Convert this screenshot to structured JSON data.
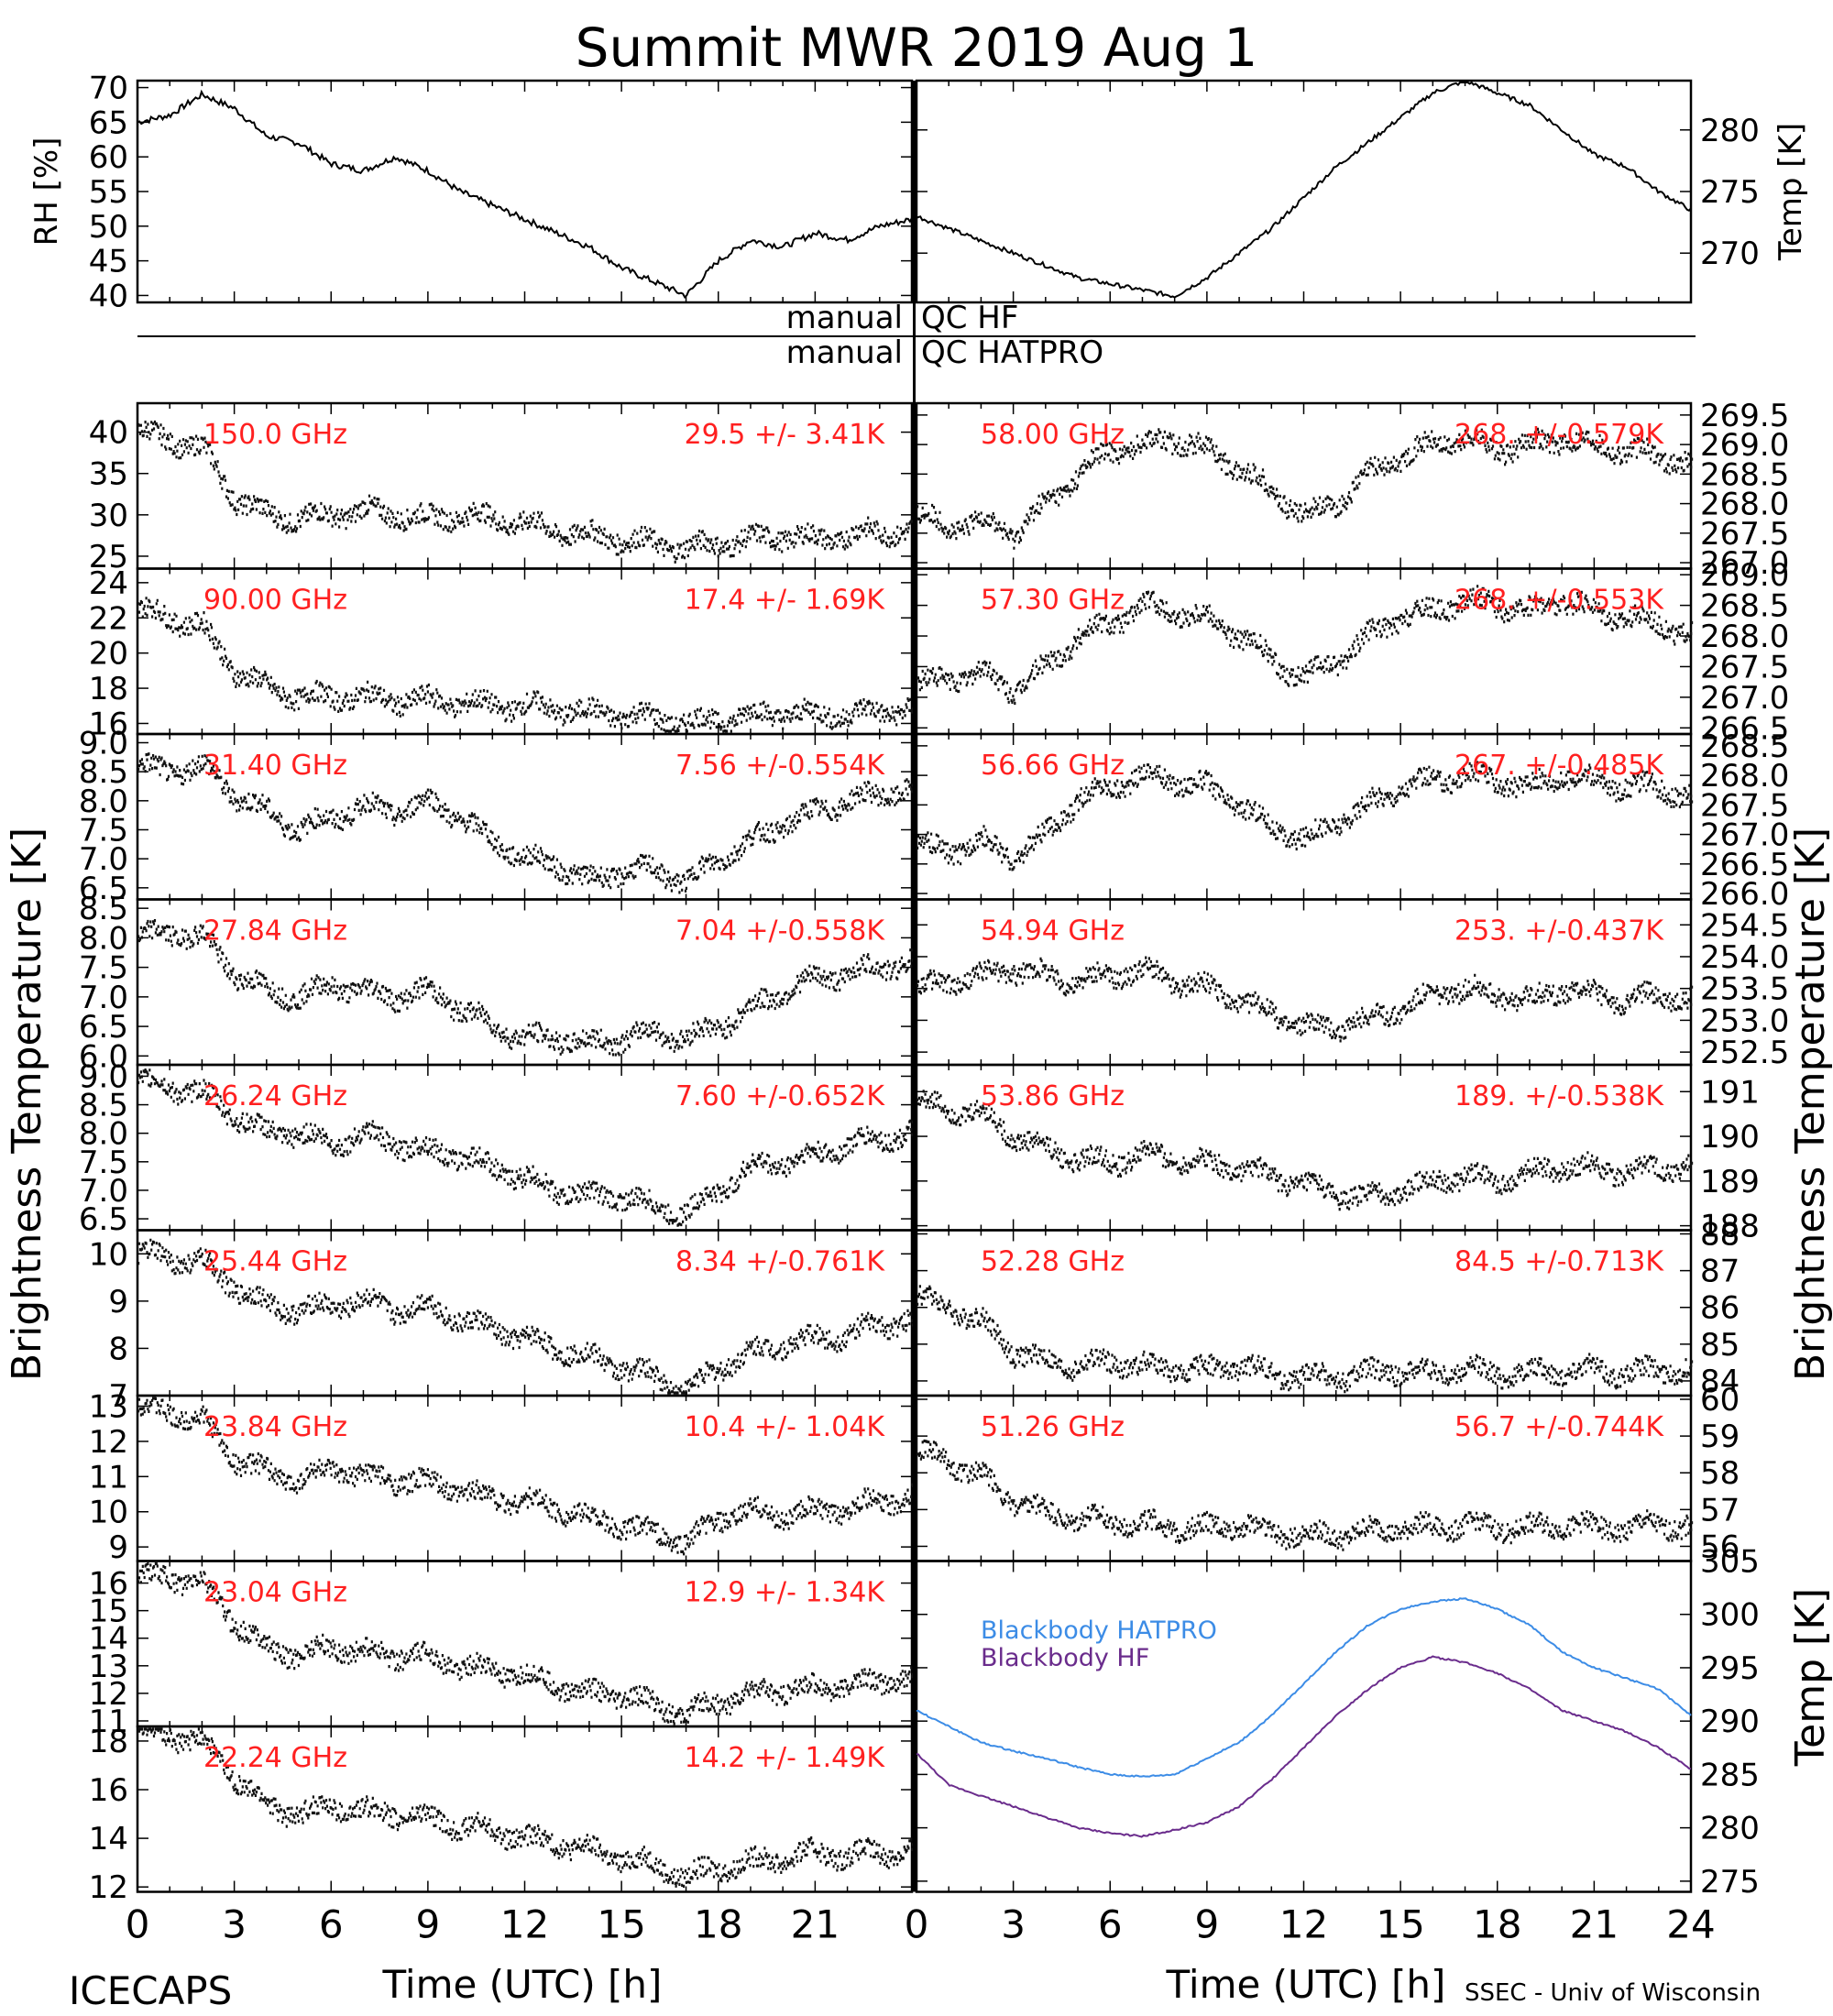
{
  "title": "Summit MWR 2019 Aug  1",
  "footer": {
    "left": "ICECAPS",
    "right": "SSEC - Univ of Wisconsin",
    "xlabel": "Time (UTC) [h]",
    "x_ticks": [
      "0",
      "3",
      "6",
      "9",
      "12",
      "15",
      "18",
      "21",
      "24"
    ]
  },
  "side_labels": {
    "left": "Brightness Temperature [K]",
    "right": "Brightness Temperature [K]",
    "bottom_right": "Temp [K]"
  },
  "qc": {
    "hf_left": "manual",
    "hf_right": "QC HF",
    "hatpro_left": "manual",
    "hatpro_right": "QC HATPRO"
  },
  "chart_data": [
    {
      "type": "line",
      "panel": "rh",
      "ylabel": "RH [%]",
      "ylim": [
        39,
        71
      ],
      "xlim": [
        0,
        24
      ],
      "y_ticks": [
        "40",
        "45",
        "50",
        "55",
        "60",
        "65",
        "70"
      ],
      "x": [
        0,
        1,
        2,
        3,
        4,
        5,
        6,
        7,
        8,
        9,
        10,
        11,
        12,
        13,
        14,
        15,
        16,
        17,
        18,
        19,
        20,
        21,
        22,
        23,
        24
      ],
      "y": [
        65,
        66,
        69,
        67,
        63,
        62,
        59,
        58,
        60,
        58,
        55,
        53,
        51,
        49,
        47,
        44,
        42,
        40,
        45,
        48,
        47,
        49,
        48,
        50,
        51
      ]
    },
    {
      "type": "line",
      "panel": "temp_air",
      "ylabel": "Temp [K]",
      "ylim": [
        266,
        284
      ],
      "xlim": [
        0,
        24
      ],
      "y_ticks": [
        "270",
        "275",
        "280"
      ],
      "x": [
        0,
        1,
        2,
        3,
        4,
        5,
        6,
        7,
        8,
        9,
        10,
        11,
        12,
        13,
        14,
        15,
        16,
        17,
        18,
        19,
        20,
        21,
        22,
        23,
        24
      ],
      "y": [
        273,
        272,
        271,
        270,
        269,
        268,
        267.5,
        267,
        266.5,
        268,
        270,
        272,
        274.5,
        277,
        279,
        281,
        283,
        284,
        283,
        282,
        280,
        278,
        277,
        275,
        273.5
      ]
    },
    {
      "type": "scatter",
      "side": "left",
      "channel": "150.0 GHz",
      "stat": "29.5 +/-  3.41K",
      "ylim": [
        23.5,
        43.5
      ],
      "y_ticks": [
        "25",
        "30",
        "35",
        "40"
      ],
      "x": [
        0,
        1,
        2,
        3,
        4,
        5,
        6,
        7,
        8,
        9,
        10,
        11,
        12,
        13,
        14,
        15,
        16,
        17,
        18,
        19,
        20,
        21,
        22,
        23,
        24
      ],
      "y": [
        40,
        39,
        38,
        32,
        30,
        29.5,
        30,
        30.5,
        30,
        29.5,
        30,
        29.5,
        29,
        28,
        27.5,
        27,
        26.5,
        26,
        26.5,
        27,
        27.5,
        27,
        27.5,
        28,
        28
      ]
    },
    {
      "type": "scatter",
      "side": "left",
      "channel": "90.00 GHz",
      "stat": "17.4 +/-  1.69K",
      "ylim": [
        15.4,
        24.8
      ],
      "y_ticks": [
        "16",
        "18",
        "20",
        "22",
        "24"
      ],
      "x": [
        0,
        1,
        2,
        3,
        4,
        5,
        6,
        7,
        8,
        9,
        10,
        11,
        12,
        13,
        14,
        15,
        16,
        17,
        18,
        19,
        20,
        21,
        22,
        23,
        24
      ],
      "y": [
        22.5,
        22,
        21.5,
        19,
        18,
        17.5,
        17.5,
        17.5,
        17.3,
        17.3,
        17.2,
        17,
        17,
        16.8,
        16.6,
        16.5,
        16.3,
        16,
        16.2,
        16.5,
        16.6,
        16.5,
        16.5,
        16.7,
        16.8
      ]
    },
    {
      "type": "scatter",
      "side": "left",
      "channel": "31.40 GHz",
      "stat": "7.56 +/-0.554K",
      "ylim": [
        6.3,
        9.15
      ],
      "y_ticks": [
        "6.5",
        "7.0",
        "7.5",
        "8.0",
        "8.5",
        "9.0"
      ],
      "x": [
        0,
        1,
        2,
        3,
        4,
        5,
        6,
        7,
        8,
        9,
        10,
        11,
        12,
        13,
        14,
        15,
        16,
        17,
        18,
        19,
        20,
        21,
        22,
        23,
        24
      ],
      "y": [
        8.6,
        8.5,
        8.6,
        8.1,
        7.8,
        7.5,
        7.7,
        7.9,
        7.8,
        8.0,
        7.7,
        7.3,
        7.0,
        6.9,
        6.6,
        6.8,
        6.8,
        6.6,
        7.0,
        7.3,
        7.6,
        7.8,
        8.0,
        8.1,
        8.2
      ]
    },
    {
      "type": "scatter",
      "side": "left",
      "channel": "27.84 GHz",
      "stat": "7.04 +/-0.558K",
      "ylim": [
        5.85,
        8.65
      ],
      "y_ticks": [
        "6.0",
        "6.5",
        "7.0",
        "7.5",
        "8.0",
        "8.5"
      ],
      "x": [
        0,
        1,
        2,
        3,
        4,
        5,
        6,
        7,
        8,
        9,
        10,
        11,
        12,
        13,
        14,
        15,
        16,
        17,
        18,
        19,
        20,
        21,
        22,
        23,
        24
      ],
      "y": [
        8.0,
        8.1,
        8.0,
        7.4,
        7.1,
        7.0,
        7.2,
        7.1,
        7.0,
        7.1,
        6.8,
        6.5,
        6.3,
        6.3,
        6.2,
        6.3,
        6.4,
        6.3,
        6.5,
        6.8,
        7.1,
        7.3,
        7.4,
        7.5,
        7.6
      ]
    },
    {
      "type": "scatter",
      "side": "left",
      "channel": "26.24 GHz",
      "stat": "7.60 +/-0.652K",
      "ylim": [
        6.3,
        9.2
      ],
      "y_ticks": [
        "6.5",
        "7.0",
        "7.5",
        "8.0",
        "8.5",
        "9.0"
      ],
      "x": [
        0,
        1,
        2,
        3,
        4,
        5,
        6,
        7,
        8,
        9,
        10,
        11,
        12,
        13,
        14,
        15,
        16,
        17,
        18,
        19,
        20,
        21,
        22,
        23,
        24
      ],
      "y": [
        8.9,
        8.8,
        8.7,
        8.3,
        8.0,
        8.0,
        7.8,
        8.0,
        7.8,
        7.7,
        7.6,
        7.4,
        7.2,
        7.0,
        6.9,
        6.9,
        6.7,
        6.6,
        7.0,
        7.4,
        7.5,
        7.6,
        7.8,
        7.9,
        8.0
      ]
    },
    {
      "type": "scatter",
      "side": "left",
      "channel": "25.44 GHz",
      "stat": "8.34 +/-0.761K",
      "ylim": [
        7.0,
        10.5
      ],
      "y_ticks": [
        "7",
        "8",
        "9",
        "10"
      ],
      "x": [
        0,
        1,
        2,
        3,
        4,
        5,
        6,
        7,
        8,
        9,
        10,
        11,
        12,
        13,
        14,
        15,
        16,
        17,
        18,
        19,
        20,
        21,
        22,
        23,
        24
      ],
      "y": [
        10.0,
        9.9,
        9.8,
        9.3,
        8.9,
        8.8,
        8.9,
        9.0,
        8.8,
        8.9,
        8.6,
        8.4,
        8.2,
        8.0,
        7.8,
        7.6,
        7.4,
        7.1,
        7.6,
        7.9,
        8.1,
        8.2,
        8.3,
        8.5,
        8.6
      ]
    },
    {
      "type": "scatter",
      "side": "left",
      "channel": "23.84 GHz",
      "stat": "10.4 +/- 1.04K",
      "ylim": [
        8.6,
        13.3
      ],
      "y_ticks": [
        "9",
        "10",
        "11",
        "12",
        "13"
      ],
      "x": [
        0,
        1,
        2,
        3,
        4,
        5,
        6,
        7,
        8,
        9,
        10,
        11,
        12,
        13,
        14,
        15,
        16,
        17,
        18,
        19,
        20,
        21,
        22,
        23,
        24
      ],
      "y": [
        13.0,
        12.8,
        12.6,
        11.5,
        11.1,
        10.9,
        11.2,
        11.0,
        10.9,
        10.8,
        10.6,
        10.4,
        10.3,
        10.1,
        9.8,
        9.6,
        9.4,
        9.1,
        9.8,
        10.0,
        9.9,
        10.0,
        10.1,
        10.3,
        10.4
      ]
    },
    {
      "type": "scatter",
      "side": "left",
      "channel": "23.04 GHz",
      "stat": "12.9 +/- 1.34K",
      "ylim": [
        10.8,
        16.8
      ],
      "y_ticks": [
        "11",
        "12",
        "13",
        "14",
        "15",
        "16"
      ],
      "x": [
        0,
        1,
        2,
        3,
        4,
        5,
        6,
        7,
        8,
        9,
        10,
        11,
        12,
        13,
        14,
        15,
        16,
        17,
        18,
        19,
        20,
        21,
        22,
        23,
        24
      ],
      "y": [
        16.3,
        16.2,
        16.0,
        14.6,
        13.6,
        13.4,
        13.7,
        13.5,
        13.4,
        13.3,
        13.0,
        12.8,
        12.6,
        12.3,
        12.0,
        11.9,
        11.6,
        11.2,
        11.7,
        12.0,
        12.1,
        12.2,
        12.3,
        12.4,
        12.6
      ]
    },
    {
      "type": "scatter",
      "side": "left",
      "channel": "22.24 GHz",
      "stat": "14.2 +/- 1.49K",
      "ylim": [
        11.8,
        18.6
      ],
      "y_ticks": [
        "12",
        "14",
        "16",
        "18"
      ],
      "x": [
        0,
        1,
        2,
        3,
        4,
        5,
        6,
        7,
        8,
        9,
        10,
        11,
        12,
        13,
        14,
        15,
        16,
        17,
        18,
        19,
        20,
        21,
        22,
        23,
        24
      ],
      "y": [
        18.4,
        18.2,
        18.0,
        16.5,
        15.3,
        15.0,
        15.3,
        15.1,
        15.0,
        14.8,
        14.5,
        14.3,
        14.0,
        13.8,
        13.5,
        13.2,
        12.9,
        12.4,
        12.8,
        13.0,
        13.2,
        13.4,
        13.3,
        13.4,
        13.5
      ]
    },
    {
      "type": "scatter",
      "side": "right",
      "channel": "58.00 GHz",
      "stat": "268. +/-0.579K",
      "ylim": [
        266.9,
        269.7
      ],
      "y_ticks": [
        "267.0",
        "267.5",
        "268.0",
        "268.5",
        "269.0",
        "269.5"
      ],
      "x": [
        0,
        1,
        2,
        3,
        4,
        5,
        6,
        7,
        8,
        9,
        10,
        11,
        12,
        13,
        14,
        15,
        16,
        17,
        18,
        19,
        20,
        21,
        22,
        23,
        24
      ],
      "y": [
        267.8,
        267.6,
        267.7,
        267.5,
        268.0,
        268.5,
        268.9,
        269.0,
        269.1,
        268.9,
        268.6,
        268.2,
        267.8,
        268.0,
        268.5,
        268.8,
        269.0,
        269.1,
        268.9,
        269.0,
        269.1,
        269.0,
        268.9,
        268.8,
        268.7
      ]
    },
    {
      "type": "scatter",
      "side": "right",
      "channel": "57.30 GHz",
      "stat": "268. +/-0.553K",
      "ylim": [
        266.4,
        269.1
      ],
      "y_ticks": [
        "266.5",
        "267.0",
        "267.5",
        "268.0",
        "268.5",
        "269.0"
      ],
      "x": [
        0,
        1,
        2,
        3,
        4,
        5,
        6,
        7,
        8,
        9,
        10,
        11,
        12,
        13,
        14,
        15,
        16,
        17,
        18,
        19,
        20,
        21,
        22,
        23,
        24
      ],
      "y": [
        267.2,
        267.3,
        267.4,
        267.1,
        267.5,
        268.0,
        268.2,
        268.5,
        268.4,
        268.3,
        268.0,
        267.6,
        267.3,
        267.6,
        268.0,
        268.3,
        268.4,
        268.6,
        268.5,
        268.4,
        268.6,
        268.4,
        268.3,
        268.2,
        268.0
      ]
    },
    {
      "type": "scatter",
      "side": "right",
      "channel": "56.66 GHz",
      "stat": "267. +/-0.485K",
      "ylim": [
        265.9,
        268.7
      ],
      "y_ticks": [
        "266.0",
        "266.5",
        "267.0",
        "267.5",
        "268.0",
        "268.5"
      ],
      "x": [
        0,
        1,
        2,
        3,
        4,
        5,
        6,
        7,
        8,
        9,
        10,
        11,
        12,
        13,
        14,
        15,
        16,
        17,
        18,
        19,
        20,
        21,
        22,
        23,
        24
      ],
      "y": [
        266.8,
        266.7,
        266.9,
        266.6,
        267.0,
        267.6,
        267.8,
        268.0,
        267.9,
        267.8,
        267.5,
        267.1,
        266.9,
        267.2,
        267.5,
        267.8,
        267.9,
        268.0,
        267.9,
        267.8,
        268.0,
        267.9,
        267.8,
        267.8,
        267.6
      ]
    },
    {
      "type": "scatter",
      "side": "right",
      "channel": "54.94 GHz",
      "stat": "253. +/-0.437K",
      "ylim": [
        252.3,
        254.9
      ],
      "y_ticks": [
        "252.5",
        "253.0",
        "253.5",
        "254.0",
        "254.5"
      ],
      "x": [
        0,
        1,
        2,
        3,
        4,
        5,
        6,
        7,
        8,
        9,
        10,
        11,
        12,
        13,
        14,
        15,
        16,
        17,
        18,
        19,
        20,
        21,
        22,
        23,
        24
      ],
      "y": [
        253.5,
        253.6,
        253.7,
        253.8,
        253.7,
        253.6,
        253.7,
        253.8,
        253.6,
        253.5,
        253.3,
        253.1,
        252.9,
        252.9,
        253.0,
        253.2,
        253.4,
        253.5,
        253.4,
        253.3,
        253.5,
        253.4,
        253.3,
        253.4,
        253.3
      ]
    },
    {
      "type": "scatter",
      "side": "right",
      "channel": "53.86 GHz",
      "stat": "189. +/-0.538K",
      "ylim": [
        187.9,
        191.6
      ],
      "y_ticks": [
        "188",
        "189",
        "190",
        "191"
      ],
      "x": [
        0,
        1,
        2,
        3,
        4,
        5,
        6,
        7,
        8,
        9,
        10,
        11,
        12,
        13,
        14,
        15,
        16,
        17,
        18,
        19,
        20,
        21,
        22,
        23,
        24
      ],
      "y": [
        190.8,
        190.6,
        190.5,
        190.0,
        189.7,
        189.5,
        189.4,
        189.6,
        189.5,
        189.4,
        189.3,
        189.1,
        188.9,
        188.7,
        188.6,
        188.8,
        189.0,
        189.1,
        189.0,
        189.2,
        189.3,
        189.3,
        189.2,
        189.3,
        189.3
      ]
    },
    {
      "type": "scatter",
      "side": "right",
      "channel": "52.28 GHz",
      "stat": "84.5 +/-0.713K",
      "ylim": [
        83.6,
        88.1
      ],
      "y_ticks": [
        "84",
        "85",
        "86",
        "87",
        "88"
      ],
      "x": [
        0,
        1,
        2,
        3,
        4,
        5,
        6,
        7,
        8,
        9,
        10,
        11,
        12,
        13,
        14,
        15,
        16,
        17,
        18,
        19,
        20,
        21,
        22,
        23,
        24
      ],
      "y": [
        86.3,
        86.0,
        85.6,
        84.8,
        84.5,
        84.4,
        84.5,
        84.4,
        84.3,
        84.3,
        84.4,
        84.2,
        84.1,
        84.1,
        84.2,
        84.3,
        84.2,
        84.3,
        84.2,
        84.2,
        84.3,
        84.3,
        84.2,
        84.3,
        84.3
      ]
    },
    {
      "type": "scatter",
      "side": "right",
      "channel": "51.26 GHz",
      "stat": "56.7 +/-0.744K",
      "ylim": [
        55.6,
        60.1
      ],
      "y_ticks": [
        "56",
        "57",
        "58",
        "59",
        "60"
      ],
      "x": [
        0,
        1,
        2,
        3,
        4,
        5,
        6,
        7,
        8,
        9,
        10,
        11,
        12,
        13,
        14,
        15,
        16,
        17,
        18,
        19,
        20,
        21,
        22,
        23,
        24
      ],
      "y": [
        58.6,
        58.3,
        57.9,
        57.2,
        56.9,
        56.7,
        56.7,
        56.6,
        56.5,
        56.5,
        56.6,
        56.4,
        56.3,
        56.3,
        56.4,
        56.5,
        56.5,
        56.6,
        56.5,
        56.5,
        56.6,
        56.5,
        56.5,
        56.6,
        56.5
      ]
    },
    {
      "type": "line",
      "panel": "blackbody",
      "ylabel": "Temp [K]",
      "ylim": [
        274,
        305
      ],
      "xlim": [
        0,
        24
      ],
      "y_ticks": [
        "275",
        "280",
        "285",
        "290",
        "295",
        "300",
        "305"
      ],
      "x": [
        0,
        1,
        2,
        3,
        4,
        5,
        6,
        7,
        8,
        9,
        10,
        11,
        12,
        13,
        14,
        15,
        16,
        17,
        18,
        19,
        20,
        21,
        22,
        23,
        24
      ],
      "series": [
        {
          "name": "Blackbody HATPRO",
          "color": "#3c8ce6",
          "values": [
            291,
            289.5,
            288,
            287.2,
            286.5,
            285.7,
            285,
            284.8,
            285,
            286.5,
            288,
            290.5,
            293.5,
            296.5,
            299,
            300.5,
            301.2,
            301.5,
            300.5,
            299,
            296.5,
            295,
            294,
            293,
            290.5
          ]
        },
        {
          "name": "Blackbody HF",
          "color": "#6a2c8c",
          "values": [
            287,
            284,
            283,
            282,
            281,
            280,
            279.5,
            279.2,
            279.8,
            280.5,
            282,
            284.5,
            287.5,
            290.5,
            293,
            295,
            296,
            295.5,
            294.5,
            293,
            291,
            290,
            289,
            287.5,
            285.5
          ]
        }
      ]
    }
  ]
}
